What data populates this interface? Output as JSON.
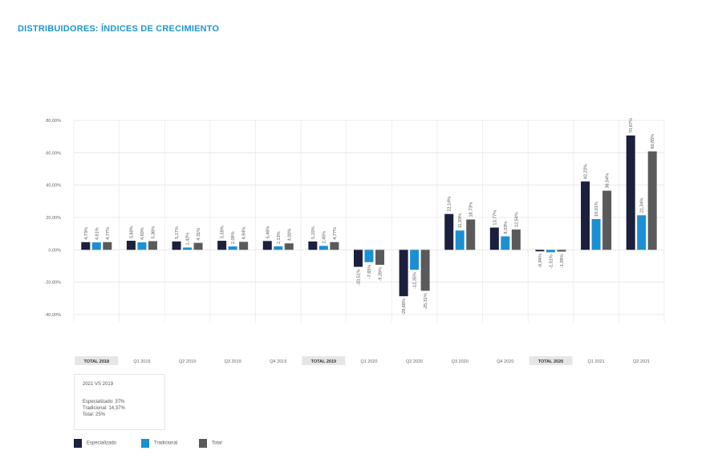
{
  "title": "DISTRIBUIDORES: ÍNDICES DE CRECIMIENTO",
  "colors": {
    "especializado": "#1c1f3e",
    "tradicional": "#1b8fd3",
    "total": "#5a5a5a"
  },
  "chart_data": {
    "type": "bar",
    "ylim": [
      -40,
      80
    ],
    "yticks": [
      80,
      60,
      40,
      20,
      0,
      -20,
      -40
    ],
    "ytick_labels": [
      "80,00%",
      "60,00%",
      "40,00%",
      "20,00%",
      "0,00%",
      "-20,00%",
      "-40,00%"
    ],
    "categories": [
      "TOTAL 2018",
      "Q1 2019",
      "Q2 2019",
      "Q3 2019",
      "Q4 2019",
      "TOTAL 2019",
      "Q1 2020",
      "Q2 2020",
      "Q3 2020",
      "Q4 2020",
      "TOTAL 2020",
      "Q1 2021",
      "Q2 2021"
    ],
    "highlighted_categories": [
      "TOTAL 2018",
      "TOTAL 2019",
      "TOTAL 2020"
    ],
    "series": [
      {
        "name": "Especializado",
        "values": [
          4.73,
          5.6,
          5.17,
          5.58,
          5.46,
          5.15,
          -10.51,
          -28.68,
          22.14,
          13.77,
          -0.94,
          42.23,
          70.67
        ],
        "labels": [
          "4,73%",
          "5,60%",
          "5,17%",
          "5,58%",
          "5,46%",
          "5,15%",
          "-10,51%",
          "-28,68%",
          "22,14%",
          "13,77%",
          "-0,94%",
          "42,23%",
          "70,67%"
        ]
      },
      {
        "name": "Tradicional",
        "values": [
          4.61,
          4.6,
          1.42,
          2.09,
          2.13,
          2.45,
          -7.65,
          -12.35,
          11.93,
          8.33,
          -1.51,
          19.01,
          21.34
        ],
        "labels": [
          "4,61%",
          "4,60%",
          "1,42%",
          "2,09%",
          "2,13%",
          "2,45%",
          "-7,65%",
          "-12,35%",
          "11,93%",
          "8,33%",
          "-1,51%",
          "19,01%",
          "21,34%"
        ]
      },
      {
        "name": "Total",
        "values": [
          4.77,
          5.36,
          4.31,
          4.94,
          4.0,
          4.77,
          -9.26,
          -25.31,
          18.73,
          12.54,
          -1.09,
          36.54,
          60.85
        ],
        "labels": [
          "4,77%",
          "5,36%",
          "4,31%",
          "4,94%",
          "4,00%",
          "4,77%",
          "-9,26%",
          "-25,31%",
          "18,73%",
          "12,54%",
          "-1,09%",
          "36,54%",
          "60,85%"
        ]
      }
    ],
    "legend_placement": "bottom-left",
    "grid": true
  },
  "note": {
    "header": "2021 VS 2019",
    "lines": [
      "Especializado: 37%",
      "Tradicional: 14,37%",
      "Total: 25%"
    ]
  }
}
